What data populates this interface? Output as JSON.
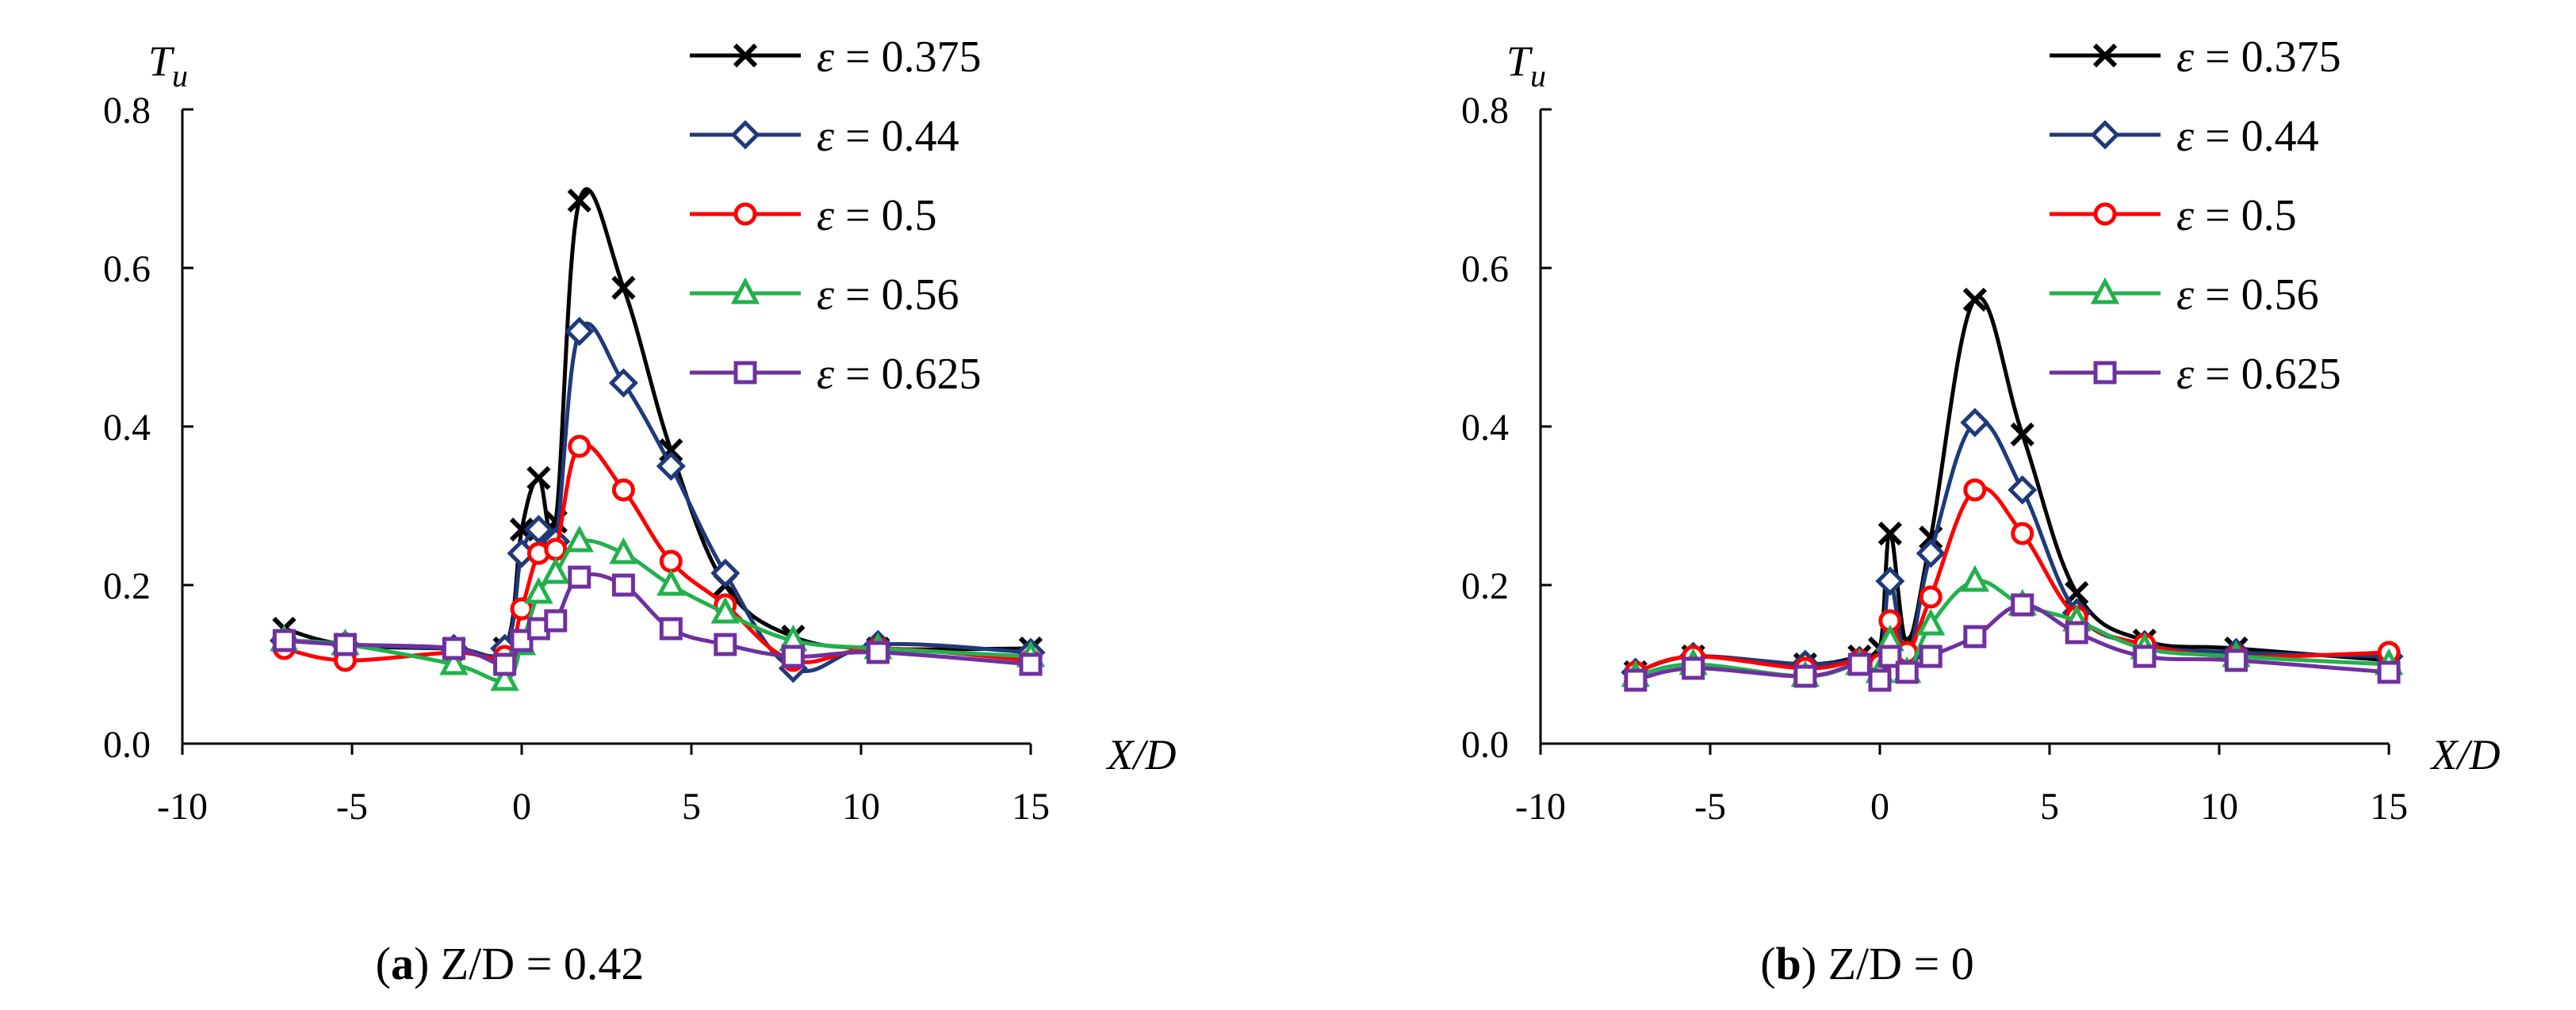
{
  "figure": {
    "captions": [
      {
        "letter": "a",
        "text": " Z/D = 0.42"
      },
      {
        "letter": "b",
        "text": " Z/D = 0"
      }
    ]
  },
  "legend": {
    "symbol": "ε",
    "entries": [
      {
        "label": "= 0.375",
        "color": "#000000",
        "marker": "x"
      },
      {
        "label": "= 0.44",
        "color": "#1f3a7a",
        "marker": "diamond"
      },
      {
        "label": "= 0.5",
        "color": "#ff0000",
        "marker": "circle"
      },
      {
        "label": "= 0.56",
        "color": "#22b14c",
        "marker": "triangle"
      },
      {
        "label": "= 0.625",
        "color": "#7030a0",
        "marker": "square"
      }
    ]
  },
  "chart_data": [
    {
      "type": "line",
      "title": "(a) Z/D = 0.42",
      "xlabel": "X/D",
      "ylabel": "T",
      "ylabel_sub": "u",
      "xlim": [
        -10,
        15
      ],
      "ylim": [
        0,
        0.8
      ],
      "xticks": [
        "-10",
        "-5",
        "0",
        "5",
        "10",
        "15"
      ],
      "yticks": [
        "0.0",
        "0.2",
        "0.4",
        "0.6",
        "0.8"
      ],
      "series": [
        {
          "name": "ε = 0.375",
          "color": "#000000",
          "marker": "x",
          "x": [
            -7,
            -5.2,
            -2,
            -0.5,
            0,
            0.5,
            1,
            1.7,
            3,
            4.4,
            6,
            8,
            10.5,
            15
          ],
          "y": [
            0.145,
            0.125,
            0.12,
            0.12,
            0.27,
            0.335,
            0.28,
            0.685,
            0.575,
            0.37,
            0.2,
            0.135,
            0.12,
            0.12
          ]
        },
        {
          "name": "ε = 0.44",
          "color": "#1f3a7a",
          "marker": "diamond",
          "x": [
            -7,
            -5.2,
            -2,
            -0.5,
            0,
            0.5,
            1,
            1.7,
            3,
            4.4,
            6,
            8,
            10.5,
            15
          ],
          "y": [
            0.13,
            0.125,
            0.12,
            0.12,
            0.24,
            0.27,
            0.255,
            0.52,
            0.455,
            0.35,
            0.215,
            0.095,
            0.125,
            0.115
          ]
        },
        {
          "name": "ε = 0.5",
          "color": "#ff0000",
          "marker": "circle",
          "x": [
            -7,
            -5.2,
            -2,
            -0.5,
            0,
            0.5,
            1,
            1.7,
            3,
            4.4,
            6,
            8,
            10.5,
            15
          ],
          "y": [
            0.12,
            0.105,
            0.115,
            0.11,
            0.17,
            0.24,
            0.245,
            0.375,
            0.32,
            0.23,
            0.175,
            0.105,
            0.12,
            0.105
          ]
        },
        {
          "name": "ε = 0.56",
          "color": "#22b14c",
          "marker": "triangle",
          "x": [
            -7,
            -5.2,
            -2,
            -0.5,
            0,
            0.5,
            1,
            1.7,
            3,
            4.4,
            6,
            8,
            10.5,
            15
          ],
          "y": [
            0.13,
            0.125,
            0.1,
            0.08,
            0.125,
            0.19,
            0.215,
            0.255,
            0.24,
            0.2,
            0.165,
            0.13,
            0.12,
            0.11
          ]
        },
        {
          "name": "ε = 0.625",
          "color": "#7030a0",
          "marker": "square",
          "x": [
            -7,
            -5.2,
            -2,
            -0.5,
            0,
            0.5,
            1,
            1.7,
            3,
            4.4,
            6,
            8,
            10.5,
            15
          ],
          "y": [
            0.13,
            0.125,
            0.12,
            0.1,
            0.13,
            0.145,
            0.155,
            0.21,
            0.2,
            0.145,
            0.125,
            0.11,
            0.115,
            0.1
          ]
        }
      ]
    },
    {
      "type": "line",
      "title": "(b) Z/D = 0",
      "xlabel": "X/D",
      "ylabel": "T",
      "ylabel_sub": "u",
      "xlim": [
        -10,
        15
      ],
      "ylim": [
        0,
        0.8
      ],
      "xticks": [
        "-10",
        "-5",
        "0",
        "5",
        "10",
        "15"
      ],
      "yticks": [
        "0.0",
        "0.2",
        "0.4",
        "0.6",
        "0.8"
      ],
      "series": [
        {
          "name": "ε = 0.375",
          "color": "#000000",
          "marker": "x",
          "x": [
            -7.2,
            -5.5,
            -2.2,
            -0.6,
            0,
            0.3,
            0.8,
            1.5,
            2.8,
            4.2,
            5.8,
            7.8,
            10.5,
            15
          ],
          "y": [
            0.09,
            0.11,
            0.1,
            0.11,
            0.12,
            0.265,
            0.13,
            0.26,
            0.56,
            0.39,
            0.19,
            0.13,
            0.12,
            0.105
          ]
        },
        {
          "name": "ε = 0.44",
          "color": "#1f3a7a",
          "marker": "diamond",
          "x": [
            -7.2,
            -5.5,
            -2.2,
            -0.6,
            0,
            0.3,
            0.8,
            1.5,
            2.8,
            4.2,
            5.8,
            7.8,
            10.5,
            15
          ],
          "y": [
            0.09,
            0.11,
            0.1,
            0.105,
            0.1,
            0.205,
            0.11,
            0.24,
            0.405,
            0.32,
            0.165,
            0.125,
            0.115,
            0.11
          ]
        },
        {
          "name": "ε = 0.5",
          "color": "#ff0000",
          "marker": "circle",
          "x": [
            -7.2,
            -5.5,
            -2.2,
            -0.6,
            0,
            0.3,
            0.8,
            1.5,
            2.8,
            4.2,
            5.8,
            7.8,
            10.5,
            15
          ],
          "y": [
            0.09,
            0.11,
            0.095,
            0.105,
            0.1,
            0.155,
            0.115,
            0.185,
            0.32,
            0.265,
            0.16,
            0.125,
            0.11,
            0.115
          ]
        },
        {
          "name": "ε = 0.56",
          "color": "#22b14c",
          "marker": "triangle",
          "x": [
            -7.2,
            -5.5,
            -2.2,
            -0.6,
            0,
            0.3,
            0.8,
            1.5,
            2.8,
            4.2,
            5.8,
            7.8,
            10.5,
            15
          ],
          "y": [
            0.085,
            0.1,
            0.085,
            0.1,
            0.09,
            0.13,
            0.09,
            0.15,
            0.205,
            0.175,
            0.155,
            0.12,
            0.11,
            0.1
          ]
        },
        {
          "name": "ε = 0.625",
          "color": "#7030a0",
          "marker": "square",
          "x": [
            -7.2,
            -5.5,
            -2.2,
            -0.6,
            0,
            0.3,
            0.8,
            1.5,
            2.8,
            4.2,
            5.8,
            7.8,
            10.5,
            15
          ],
          "y": [
            0.08,
            0.095,
            0.085,
            0.1,
            0.08,
            0.11,
            0.09,
            0.11,
            0.135,
            0.175,
            0.14,
            0.11,
            0.105,
            0.09
          ]
        }
      ]
    }
  ]
}
